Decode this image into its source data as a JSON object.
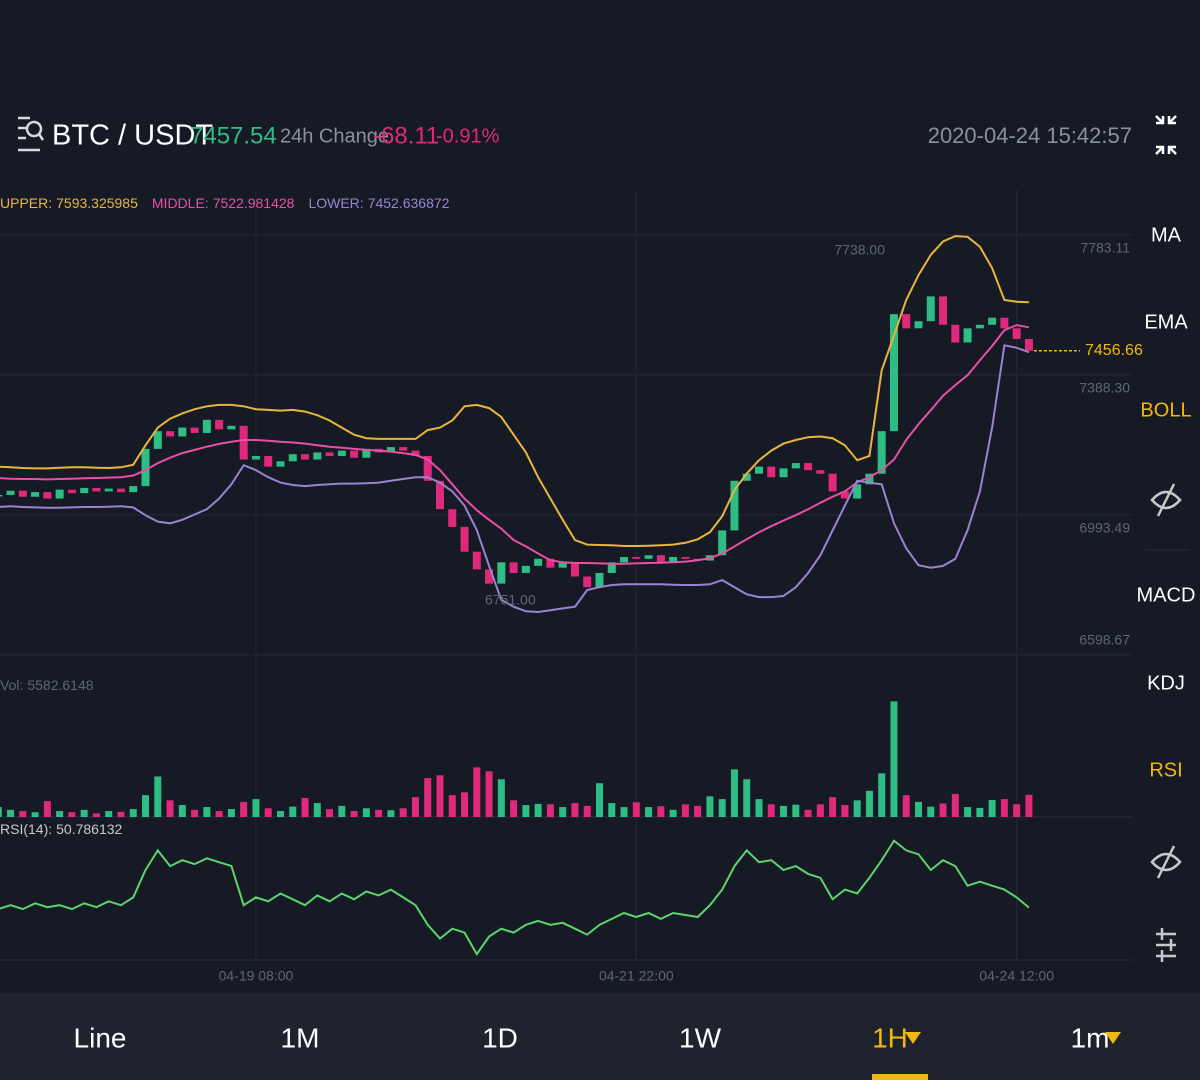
{
  "header": {
    "pair": "BTC / USDT",
    "price": "7457.54",
    "change_label": "24h Change",
    "change": "-68.11",
    "change_pct": "-0.91%",
    "time": "2020-04-24 15:42:57"
  },
  "sidebar": [
    "MA",
    "EMA",
    "BOLL",
    "MACD",
    "KDJ",
    "RSI"
  ],
  "toolbar": [
    "Line",
    "1M",
    "1D",
    "1W",
    "1H",
    "1m"
  ],
  "chart_data": [
    {
      "type": "candlestick",
      "up_color": "#2ebd85",
      "down_color": "#e0297a",
      "values": [
        7050,
        7062,
        7045,
        7058,
        7040,
        7065,
        7055,
        7070,
        7060,
        7068,
        7058,
        7075,
        7180,
        7230,
        7215,
        7240,
        7225,
        7262,
        7235,
        7245,
        7150,
        7160,
        7130,
        7145,
        7165,
        7150,
        7170,
        7160,
        7175,
        7155,
        7180,
        7170,
        7185,
        7175,
        7160,
        7090,
        7010,
        6960,
        6890,
        6840,
        6800,
        6860,
        6830,
        6850,
        6870,
        6845,
        6860,
        6820,
        6790,
        6830,
        6860,
        6875,
        6870,
        6880,
        6860,
        6875,
        6870,
        6865,
        6880,
        6950,
        7090,
        7110,
        7130,
        7100,
        7125,
        7140,
        7120,
        7110,
        7060,
        7040,
        7080,
        7110,
        7230,
        7560,
        7520,
        7540,
        7610,
        7530,
        7480,
        7520,
        7530,
        7550,
        7520,
        7490,
        7456.66
      ],
      "series": [
        {
          "name": "UPPER:",
          "color": "#e9b53c",
          "values": [
            7130,
            7128,
            7126,
            7125,
            7125,
            7127,
            7128,
            7128,
            7127,
            7126,
            7128,
            7135,
            7190,
            7240,
            7265,
            7280,
            7292,
            7300,
            7304,
            7304,
            7300,
            7292,
            7290,
            7288,
            7290,
            7285,
            7275,
            7260,
            7240,
            7220,
            7210,
            7208,
            7208,
            7208,
            7208,
            7233,
            7240,
            7260,
            7300,
            7304,
            7295,
            7270,
            7220,
            7170,
            7100,
            7040,
            6980,
            6923,
            6910,
            6909,
            6908,
            6906,
            6906,
            6907,
            6908,
            6910,
            6915,
            6925,
            6945,
            6990,
            7064,
            7110,
            7148,
            7175,
            7195,
            7205,
            7213,
            7215,
            7210,
            7190,
            7148,
            7160,
            7402,
            7500,
            7600,
            7670,
            7727,
            7765,
            7780,
            7778,
            7750,
            7690,
            7600,
            7595,
            7593.325985
          ]
        },
        {
          "name": "MIDDLE:",
          "color": "#e84fa5",
          "values": [
            7098,
            7096,
            7095,
            7095,
            7094,
            7095,
            7096,
            7097,
            7098,
            7099,
            7100,
            7105,
            7120,
            7140,
            7155,
            7168,
            7177,
            7186,
            7194,
            7200,
            7205,
            7205,
            7203,
            7200,
            7198,
            7195,
            7190,
            7186,
            7183,
            7180,
            7177,
            7175,
            7172,
            7168,
            7163,
            7150,
            7120,
            7080,
            7040,
            7007,
            6980,
            6955,
            6923,
            6905,
            6885,
            6866,
            6860,
            6858,
            6858,
            6857,
            6856,
            6856,
            6857,
            6858,
            6859,
            6860,
            6862,
            6866,
            6872,
            6885,
            6905,
            6925,
            6945,
            6962,
            6978,
            6993,
            7010,
            7028,
            7045,
            7060,
            7086,
            7100,
            7120,
            7150,
            7205,
            7250,
            7289,
            7330,
            7360,
            7388,
            7430,
            7470,
            7515,
            7529,
            7522.981428
          ]
        },
        {
          "name": "LOWER:",
          "color": "#9b82d3",
          "values": [
            7016,
            7018,
            7016,
            7015,
            7014,
            7014,
            7015,
            7016,
            7016,
            7017,
            7018,
            7015,
            6993,
            6975,
            6970,
            6980,
            6995,
            7010,
            7040,
            7080,
            7134,
            7120,
            7100,
            7085,
            7078,
            7075,
            7078,
            7080,
            7082,
            7082,
            7083,
            7085,
            7090,
            7095,
            7100,
            7100,
            7085,
            7060,
            7020,
            6951,
            6850,
            6754,
            6735,
            6722,
            6720,
            6725,
            6730,
            6735,
            6782,
            6790,
            6796,
            6798,
            6798,
            6798,
            6798,
            6797,
            6796,
            6796,
            6798,
            6810,
            6790,
            6770,
            6762,
            6762,
            6765,
            6790,
            6830,
            6880,
            6950,
            7020,
            7090,
            7085,
            7080,
            6970,
            6900,
            6852,
            6845,
            6850,
            6870,
            6951,
            7060,
            7240,
            7472,
            7465,
            7452.636872
          ]
        }
      ],
      "annotations": [
        "7738.00",
        "6751.00"
      ],
      "xlim": [
        0.14,
        92.4
      ],
      "xticks": [
        {
          "value": 21,
          "label": "04-19 08:00"
        },
        {
          "value": 52,
          "label": "04-21 22:00"
        },
        {
          "value": 83,
          "label": "04-24 12:00"
        }
      ],
      "ylim": [
        6598.67,
        7910.1
      ],
      "yticks": [
        6598.67,
        6993.49,
        {
          "value": 7388.3,
          "label": "7388.30"
        },
        7783.11
      ],
      "grid": true
    },
    {
      "type": "bar",
      "name": "Vol:",
      "values": [
        2500,
        1800,
        1500,
        1200,
        4000,
        1500,
        1200,
        1800,
        900,
        1500,
        1300,
        2000,
        5500,
        10200,
        4200,
        3000,
        1800,
        2500,
        1500,
        2000,
        3800,
        4500,
        2200,
        1500,
        2600,
        4800,
        3500,
        2000,
        2800,
        1500,
        2200,
        1800,
        1700,
        2200,
        5000,
        9800,
        10500,
        5500,
        6200,
        12500,
        11500,
        9500,
        4200,
        3000,
        3300,
        3200,
        2500,
        3500,
        2800,
        8500,
        3500,
        2500,
        3700,
        2500,
        2700,
        1800,
        3200,
        2800,
        5200,
        4500,
        12000,
        9500,
        4500,
        3200,
        2800,
        3100,
        1800,
        3200,
        5000,
        3000,
        4200,
        6600,
        11000,
        29100,
        5500,
        3800,
        2600,
        3400,
        5800,
        2500,
        2300,
        4300,
        4500,
        3200,
        5582.6148
      ],
      "ylim": [
        0,
        37000
      ]
    },
    {
      "type": "line",
      "name": "RSI(14):",
      "color": "#5ed36b",
      "values": [
        50,
        52,
        50,
        53,
        51,
        52,
        50,
        53,
        51,
        54,
        52,
        56,
        70,
        80,
        72,
        75,
        73,
        76,
        74,
        72,
        52,
        56,
        54,
        58,
        55,
        52,
        57,
        54,
        58,
        55,
        59,
        57,
        60,
        56,
        52,
        42,
        35,
        40,
        38,
        27,
        36,
        40,
        38,
        42,
        44,
        42,
        43,
        40,
        37,
        42,
        45,
        48,
        46,
        48,
        45,
        48,
        47,
        46,
        52,
        60,
        72,
        80,
        74,
        75,
        70,
        72,
        68,
        66,
        55,
        60,
        58,
        66,
        75,
        85,
        80,
        78,
        70,
        75,
        72,
        62,
        64,
        62,
        60,
        56,
        50.786132
      ],
      "ylim": [
        24,
        93
      ]
    }
  ]
}
